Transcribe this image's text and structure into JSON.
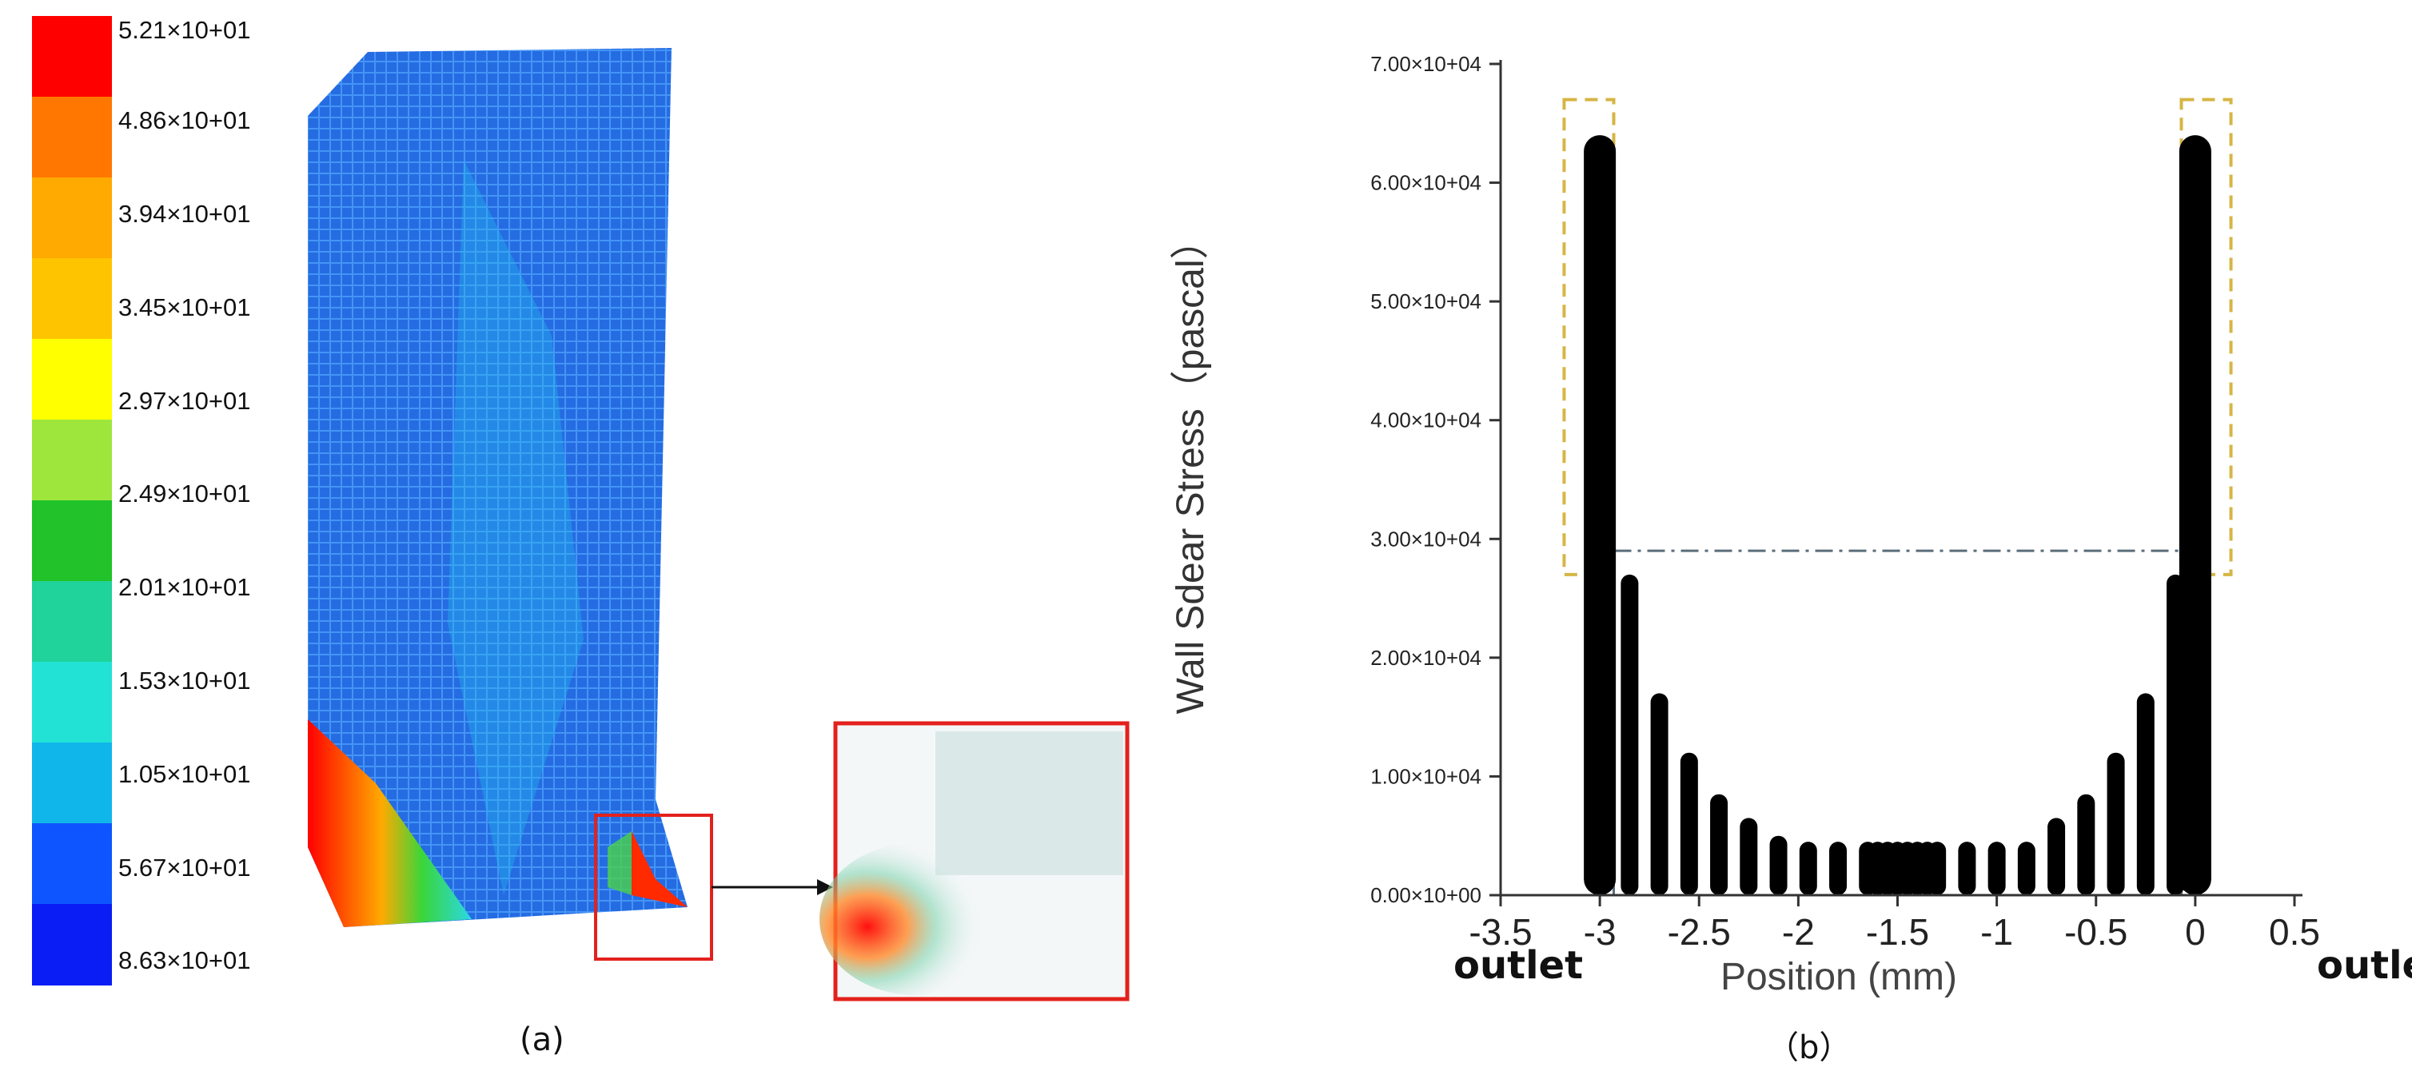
{
  "colors": {
    "scale": [
      "#ff0000",
      "#ff7700",
      "#ffaa00",
      "#ffc400",
      "#ffff00",
      "#9fe63c",
      "#21c22a",
      "#1fd39a",
      "#22e2d6",
      "#10b6ea",
      "#0f55ff",
      "#0b1df5"
    ],
    "chart_marker": "#000000",
    "yellow_box": "#d6b544",
    "gray_box": "#5a6d7a",
    "zoom_box": "#e3211c"
  },
  "panel_a": {
    "legend": [
      "5.21×10+01",
      "4.86×10+01",
      "3.94×10+01",
      "3.45×10+01",
      "2.97×10+01",
      "2.49×10+01",
      "2.01×10+01",
      "1.53×10+01",
      "1.05×10+01",
      "5.67×10+01",
      "8.63×10+01"
    ],
    "caption": "(a)"
  },
  "panel_b": {
    "caption": "（b）",
    "outlet_left": "outlet",
    "outlet_right": "outlet"
  },
  "chart_data": {
    "type": "scatter",
    "xlabel": "Position (mm)",
    "ylabel": "Wall Sdear Stress（pascal）",
    "xlim": [
      -3.5,
      0.5
    ],
    "ylim": [
      0,
      70000
    ],
    "x_ticks": [
      "-3.5",
      "-3",
      "-2.5",
      "-2",
      "-1.5",
      "-1",
      "-0.5",
      "0",
      "0.5"
    ],
    "y_ticks": [
      "0.00×10+00",
      "1.00×10+04",
      "2.00×10+04",
      "3.00×10+04",
      "4.00×10+04",
      "5.00×10+04",
      "6.00×10+04",
      "7.00×10+04"
    ],
    "columns": [
      {
        "x": -3.0,
        "ymin": 0,
        "ymax": 64000
      },
      {
        "x": -2.85,
        "ymin": 0,
        "ymax": 27000
      },
      {
        "x": -2.7,
        "ymin": 0,
        "ymax": 17000
      },
      {
        "x": -2.55,
        "ymin": 0,
        "ymax": 12000
      },
      {
        "x": -2.4,
        "ymin": 0,
        "ymax": 8500
      },
      {
        "x": -2.25,
        "ymin": 0,
        "ymax": 6500
      },
      {
        "x": -2.1,
        "ymin": 0,
        "ymax": 5000
      },
      {
        "x": -1.95,
        "ymin": 0,
        "ymax": 4500
      },
      {
        "x": -1.8,
        "ymin": 0,
        "ymax": 4500
      },
      {
        "x": -1.65,
        "ymin": 0,
        "ymax": 4500
      },
      {
        "x": -1.6,
        "ymin": 0,
        "ymax": 4500
      },
      {
        "x": -1.55,
        "ymin": 0,
        "ymax": 4500
      },
      {
        "x": -1.5,
        "ymin": 0,
        "ymax": 4500
      },
      {
        "x": -1.45,
        "ymin": 0,
        "ymax": 4500
      },
      {
        "x": -1.4,
        "ymin": 0,
        "ymax": 4500
      },
      {
        "x": -1.35,
        "ymin": 0,
        "ymax": 4500
      },
      {
        "x": -1.3,
        "ymin": 0,
        "ymax": 4500
      },
      {
        "x": -1.15,
        "ymin": 0,
        "ymax": 4500
      },
      {
        "x": -1.0,
        "ymin": 0,
        "ymax": 4500
      },
      {
        "x": -0.85,
        "ymin": 0,
        "ymax": 4500
      },
      {
        "x": -0.7,
        "ymin": 0,
        "ymax": 6500
      },
      {
        "x": -0.55,
        "ymin": 0,
        "ymax": 8500
      },
      {
        "x": -0.4,
        "ymin": 0,
        "ymax": 12000
      },
      {
        "x": -0.25,
        "ymin": 0,
        "ymax": 17000
      },
      {
        "x": -0.1,
        "ymin": 0,
        "ymax": 27000
      },
      {
        "x": 0.0,
        "ymin": 0,
        "ymax": 64000
      }
    ],
    "yellow_boxes": [
      {
        "x0": -3.18,
        "x1": -2.93,
        "y0": 27000,
        "y1": 67000
      },
      {
        "x0": -0.07,
        "x1": 0.18,
        "y0": 27000,
        "y1": 67000
      }
    ],
    "gray_box": {
      "x0": -2.93,
      "x1": -0.07,
      "y0": 0,
      "y1": 29000
    }
  }
}
